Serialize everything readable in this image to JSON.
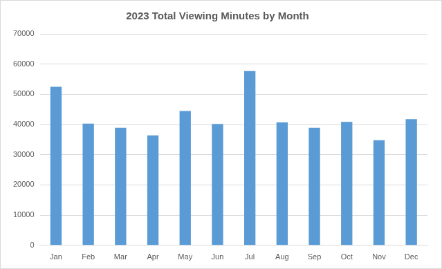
{
  "chart_data": {
    "type": "bar",
    "title": "2023 Total Viewing Minutes by Month",
    "categories": [
      "Jan",
      "Feb",
      "Mar",
      "Apr",
      "May",
      "Jun",
      "Jul",
      "Aug",
      "Sep",
      "Oct",
      "Nov",
      "Dec"
    ],
    "values": [
      52500,
      40300,
      38900,
      36400,
      44500,
      40200,
      57700,
      40700,
      38900,
      40900,
      34800,
      41800
    ],
    "color": "#5b9bd5",
    "ylim": [
      0,
      70000
    ],
    "yticks": [
      0,
      10000,
      20000,
      30000,
      40000,
      50000,
      60000,
      70000
    ],
    "grid": true
  }
}
